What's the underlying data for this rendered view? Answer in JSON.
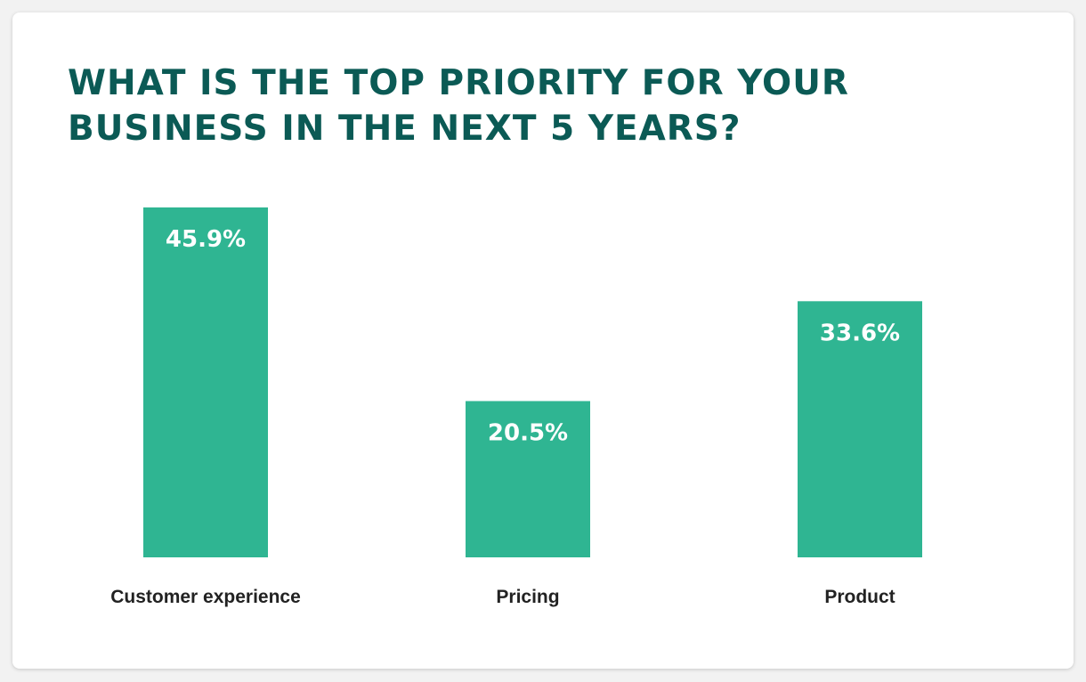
{
  "title_lines": [
    "WHAT IS THE TOP PRIORITY FOR YOUR",
    "BUSINESS IN THE NEXT 5 YEARS?"
  ],
  "colors": {
    "bar": "#2fb592",
    "title": "#0b5a55",
    "label": "#222222",
    "value_label": "#ffffff"
  },
  "chart_data": {
    "type": "bar",
    "title": "WHAT IS THE TOP PRIORITY FOR YOUR BUSINESS IN THE NEXT 5 YEARS?",
    "categories": [
      "Customer experience",
      "Pricing",
      "Product"
    ],
    "values": [
      45.9,
      20.5,
      33.6
    ],
    "value_labels": [
      "45.9%",
      "20.5%",
      "33.6%"
    ],
    "xlabel": "",
    "ylabel": "",
    "ylim": [
      0,
      45.9
    ],
    "grid": false,
    "legend": "none"
  }
}
